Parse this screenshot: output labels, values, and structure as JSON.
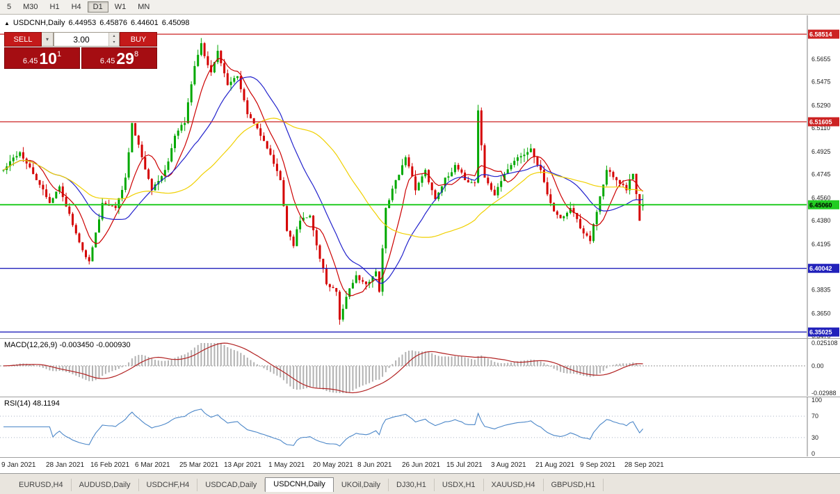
{
  "toolbar": {
    "timeframes": [
      "5",
      "M30",
      "H1",
      "H4",
      "D1",
      "W1",
      "MN"
    ],
    "active_timeframe": "D1"
  },
  "icons": {
    "symbol_marker": "▲",
    "dropdown": "▾",
    "spinner_up": "▴",
    "spinner_down": "▾"
  },
  "chart_header": {
    "symbol": "USDCNH,Daily",
    "open": "6.44953",
    "high": "6.45876",
    "low": "6.44601",
    "close": "6.45098"
  },
  "trade_panel": {
    "sell_label": "SELL",
    "buy_label": "BUY",
    "volume": "3.00",
    "sell_price": {
      "base": "6.45",
      "big": "10",
      "sup": "1"
    },
    "buy_price": {
      "base": "6.45",
      "big": "29",
      "sup": "8"
    }
  },
  "price_axis": {
    "ticks": [
      "6.5655",
      "6.5475",
      "6.5290",
      "6.5110",
      "6.4925",
      "6.4745",
      "6.4560",
      "6.4380",
      "6.4195",
      "6.3835",
      "6.3650",
      "6.3470"
    ]
  },
  "levels": [
    {
      "label": "6.58514",
      "value": 6.58514,
      "color": "#cc2222",
      "text": "#ffffff",
      "kind": "resistance-line"
    },
    {
      "label": "6.51605",
      "value": 6.51605,
      "color": "#cc2222",
      "text": "#ffffff",
      "kind": "resistance-line"
    },
    {
      "label": "6.45060",
      "value": 6.4506,
      "color": "#22cc22",
      "text": "#000000",
      "kind": "current-price-line"
    },
    {
      "label": "6.40042",
      "value": 6.40042,
      "color": "#2222bb",
      "text": "#ffffff",
      "kind": "support-line"
    },
    {
      "label": "6.35025",
      "value": 6.35025,
      "color": "#2222bb",
      "text": "#ffffff",
      "kind": "support-line"
    }
  ],
  "macd_panel": {
    "label": "MACD(12,26,9) -0.003450 -0.000930",
    "ticks": [
      {
        "label": "0.025108",
        "value": 0.025108
      },
      {
        "label": "0.00",
        "value": 0
      },
      {
        "label": "-0.02988",
        "value": -0.02988
      }
    ]
  },
  "rsi_panel": {
    "label": "RSI(14) 48.1194",
    "ticks": [
      {
        "label": "100",
        "value": 100
      },
      {
        "label": "70",
        "value": 70
      },
      {
        "label": "30",
        "value": 30
      },
      {
        "label": "0",
        "value": 0
      }
    ],
    "bands": [
      70,
      30
    ]
  },
  "x_axis": {
    "labels": [
      "9 Jan 2021",
      "28 Jan 2021",
      "16 Feb 2021",
      "6 Mar 2021",
      "25 Mar 2021",
      "13 Apr 2021",
      "1 May 2021",
      "20 May 2021",
      "8 Jun 2021",
      "26 Jun 2021",
      "15 Jul 2021",
      "3 Aug 2021",
      "21 Aug 2021",
      "9 Sep 2021",
      "28 Sep 2021"
    ],
    "label_spacing_px": 64
  },
  "tabs": {
    "items": [
      "EURUSD,H4",
      "AUDUSD,Daily",
      "USDCHF,H4",
      "USDCAD,Daily",
      "USDCNH,Daily",
      "UKOil,Daily",
      "DJ30,H1",
      "USDX,H1",
      "XAUUSD,H4",
      "GBPUSD,H1"
    ],
    "active": "USDCNH,Daily"
  },
  "chart_data": {
    "type": "candlestick",
    "symbol": "USDCNH",
    "timeframe": "Daily",
    "ohlc": {
      "open": 6.44953,
      "high": 6.45876,
      "low": 6.44601,
      "close": 6.45098
    },
    "y_range": [
      6.3454,
      6.6
    ],
    "candle_count": 195,
    "bar_spacing": 4.74,
    "up_color": "#00a800",
    "down_color": "#d40000",
    "seed": 42,
    "anchors": [
      [
        0,
        6.478
      ],
      [
        5,
        6.492
      ],
      [
        10,
        6.47
      ],
      [
        14,
        6.452
      ],
      [
        17,
        6.465
      ],
      [
        22,
        6.428
      ],
      [
        26,
        6.406
      ],
      [
        30,
        6.452
      ],
      [
        34,
        6.448
      ],
      [
        37,
        6.472
      ],
      [
        39,
        6.515
      ],
      [
        41,
        6.498
      ],
      [
        45,
        6.462
      ],
      [
        49,
        6.478
      ],
      [
        52,
        6.505
      ],
      [
        55,
        6.515
      ],
      [
        58,
        6.56
      ],
      [
        60,
        6.578
      ],
      [
        63,
        6.555
      ],
      [
        65,
        6.572
      ],
      [
        68,
        6.545
      ],
      [
        71,
        6.552
      ],
      [
        74,
        6.522
      ],
      [
        78,
        6.505
      ],
      [
        81,
        6.49
      ],
      [
        84,
        6.47
      ],
      [
        86,
        6.43
      ],
      [
        88,
        6.418
      ],
      [
        90,
        6.438
      ],
      [
        93,
        6.442
      ],
      [
        96,
        6.408
      ],
      [
        98,
        6.388
      ],
      [
        101,
        6.382
      ],
      [
        102,
        6.36
      ],
      [
        104,
        6.378
      ],
      [
        107,
        6.395
      ],
      [
        110,
        6.388
      ],
      [
        113,
        6.398
      ],
      [
        114,
        6.382
      ],
      [
        116,
        6.448
      ],
      [
        119,
        6.47
      ],
      [
        122,
        6.488
      ],
      [
        125,
        6.462
      ],
      [
        128,
        6.478
      ],
      [
        131,
        6.455
      ],
      [
        134,
        6.472
      ],
      [
        137,
        6.482
      ],
      [
        140,
        6.47
      ],
      [
        143,
        6.468
      ],
      [
        144,
        6.525
      ],
      [
        146,
        6.472
      ],
      [
        149,
        6.458
      ],
      [
        152,
        6.475
      ],
      [
        156,
        6.488
      ],
      [
        160,
        6.495
      ],
      [
        163,
        6.478
      ],
      [
        166,
        6.452
      ],
      [
        169,
        6.44
      ],
      [
        172,
        6.448
      ],
      [
        175,
        6.432
      ],
      [
        178,
        6.422
      ],
      [
        180,
        6.445
      ],
      [
        183,
        6.478
      ],
      [
        186,
        6.47
      ],
      [
        189,
        6.462
      ],
      [
        191,
        6.475
      ],
      [
        193,
        6.438
      ],
      [
        194,
        6.45098
      ]
    ],
    "moving_averages": [
      {
        "name": "fast",
        "period": 8,
        "color": "#cc0000"
      },
      {
        "name": "medium",
        "period": 20,
        "color": "#2222cc"
      },
      {
        "name": "slow",
        "period": 45,
        "color": "#f0d000"
      }
    ],
    "indicators": {
      "macd": {
        "fast": 12,
        "slow": 26,
        "signal": 9,
        "last_macd": -0.00345,
        "last_signal": -0.00093,
        "histogram_color": "#b2b2b2",
        "signal_color": "#b22222",
        "range": [
          -0.02988,
          0.025108
        ]
      },
      "rsi": {
        "period": 14,
        "last": 48.1194,
        "color": "#4a86c8",
        "range": [
          0,
          100
        ],
        "bands": [
          30,
          70
        ]
      }
    }
  }
}
